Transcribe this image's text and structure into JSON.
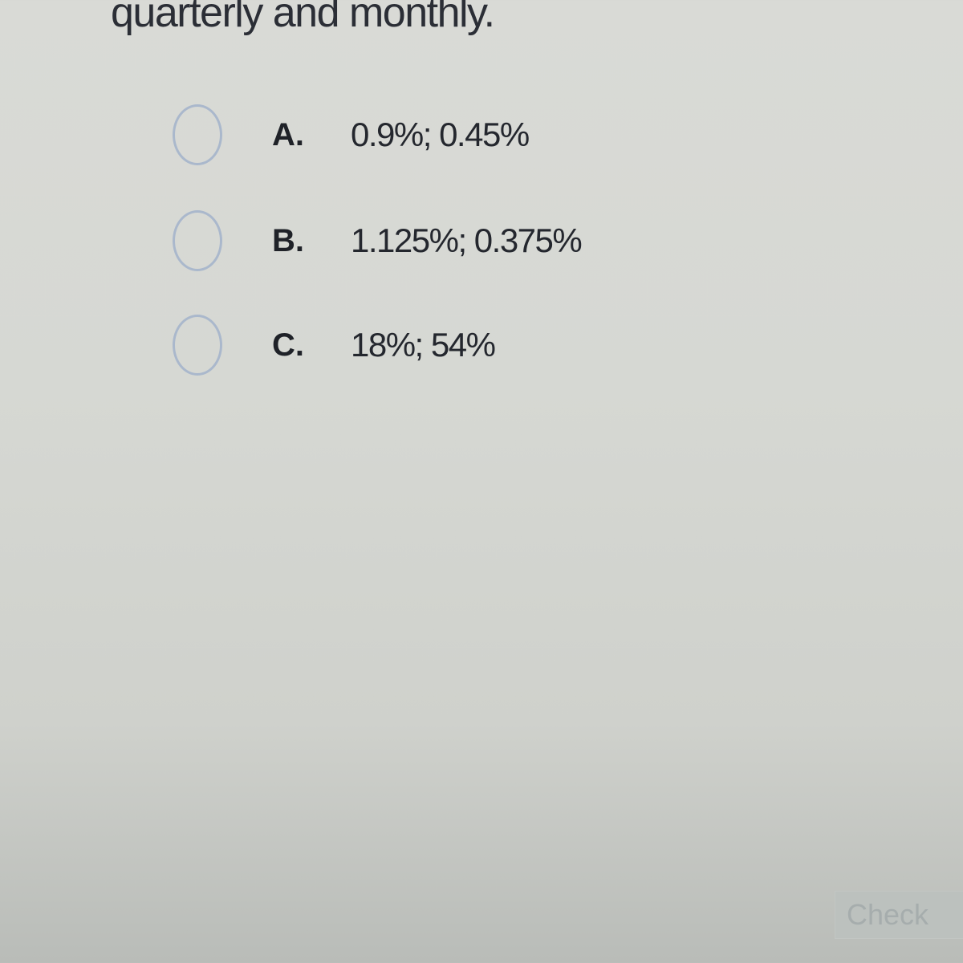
{
  "question": {
    "text_tail": "quarterly and monthly."
  },
  "options": [
    {
      "letter": "A.",
      "text": "0.9%; 0.45%"
    },
    {
      "letter": "B.",
      "text": "1.125%; 0.375%"
    },
    {
      "letter": "C.",
      "text": "18%; 54%"
    }
  ],
  "check_button": {
    "label": "Check"
  },
  "colors": {
    "radio_border": "#aab8cc",
    "background": "#d9dad6"
  }
}
